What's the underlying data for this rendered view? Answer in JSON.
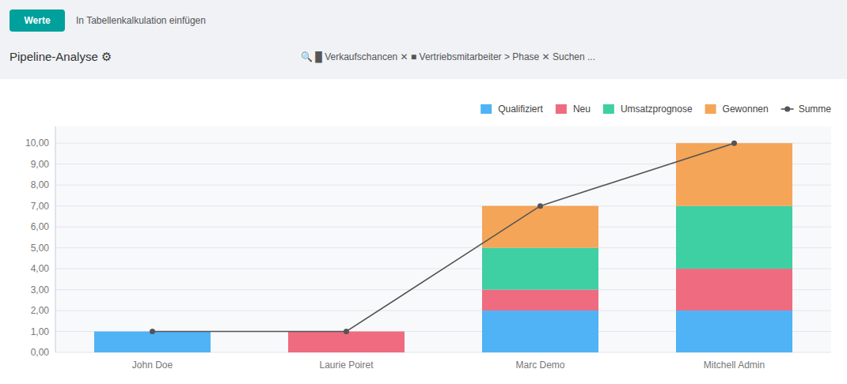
{
  "chart_data": {
    "type": "bar",
    "title": "Pipeline-Analyse ⚙",
    "annotations": [
      "Werte",
      "In Tabellenkalkulation einfügen",
      "🔍  █ Verkaufschancen ✕   ■ Vertriebsmitarbeiter > Phase ✕   Suchen ..."
    ],
    "categories": [
      "John Doe",
      "Laurie Poiret",
      "Marc Demo",
      "Mitchell Admin"
    ],
    "stacked": true,
    "series": [
      {
        "name": "Qualifiziert",
        "type": "bar",
        "color": "#4fb3f5",
        "values": [
          1,
          0,
          2,
          2
        ]
      },
      {
        "name": "Neu",
        "type": "bar",
        "color": "#ef6b80",
        "values": [
          0,
          1,
          1,
          2
        ]
      },
      {
        "name": "Umsatzprognose",
        "type": "bar",
        "color": "#3ecfa3",
        "values": [
          0,
          0,
          2,
          3
        ]
      },
      {
        "name": "Gewonnen",
        "type": "bar",
        "color": "#f5a558",
        "values": [
          0,
          0,
          2,
          3
        ]
      },
      {
        "name": "Summe",
        "type": "line",
        "color": "#555555",
        "marker": "circle",
        "values": [
          1,
          1,
          7,
          10
        ]
      }
    ],
    "ylim": [
      0,
      10.8
    ],
    "yticks": [
      {
        "value": 0,
        "label": "0,00"
      },
      {
        "value": 1,
        "label": "1,00"
      },
      {
        "value": 2,
        "label": "2,00"
      },
      {
        "value": 3,
        "label": "3,00"
      },
      {
        "value": 4,
        "label": "4,00"
      },
      {
        "value": 5,
        "label": "5,00"
      },
      {
        "value": 6,
        "label": "6,00"
      },
      {
        "value": 7,
        "label": "7,00"
      },
      {
        "value": 8,
        "label": "8,00"
      },
      {
        "value": 9,
        "label": "9,00"
      },
      {
        "value": 10,
        "label": "10,00"
      }
    ],
    "grid": true,
    "legend": "upper right"
  }
}
